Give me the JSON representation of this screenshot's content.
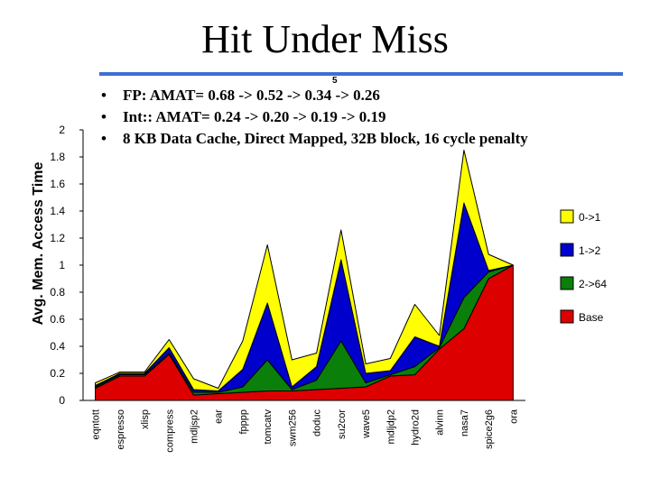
{
  "title": "Hit Under Miss",
  "slide_number": "5",
  "bullets": [
    "FP: AMAT= 0.68 -> 0.52 -> 0.34 -> 0.26",
    "Int:: AMAT= 0.24 -> 0.20 -> 0.19 -> 0.19",
    "8 KB Data Cache, Direct Mapped, 32B block, 16 cycle penalty"
  ],
  "colors": {
    "title_rule": "#3d6fd1"
  },
  "chart_data": {
    "type": "area",
    "stacked": true,
    "title": "",
    "xlabel": "",
    "ylabel": "Avg. Mem. Access Time",
    "ylim": [
      0,
      2
    ],
    "yticks": [
      "0",
      "0.2",
      "0.4",
      "0.6",
      "0.8",
      "1",
      "1.2",
      "1.4",
      "1.6",
      "1.8",
      "2"
    ],
    "legend_position": "right",
    "categories": [
      "eqntott",
      "espresso",
      "xlisp",
      "compress",
      "mdljsp2",
      "ear",
      "fpppp",
      "tomcatv",
      "swm256",
      "doduc",
      "su2cor",
      "wave5",
      "mdljdp2",
      "hydro2d",
      "alvinn",
      "nasa7",
      "spice2g6",
      "ora"
    ],
    "series": [
      {
        "name": "Base",
        "color": "#dd0000",
        "values": [
          0.09,
          0.18,
          0.18,
          0.34,
          0.04,
          0.05,
          0.06,
          0.07,
          0.07,
          0.08,
          0.09,
          0.1,
          0.18,
          0.19,
          0.38,
          0.53,
          0.9,
          1.0
        ]
      },
      {
        "name": "2->64",
        "color": "#0a800a",
        "values": [
          0.01,
          0.01,
          0.01,
          0.01,
          0.02,
          0.01,
          0.04,
          0.23,
          0.01,
          0.07,
          0.35,
          0.03,
          0.01,
          0.06,
          0.01,
          0.23,
          0.05,
          0.0
        ]
      },
      {
        "name": "1->2",
        "color": "#0000cc",
        "values": [
          0.01,
          0.01,
          0.01,
          0.04,
          0.02,
          0.01,
          0.13,
          0.42,
          0.02,
          0.1,
          0.6,
          0.07,
          0.03,
          0.22,
          0.01,
          0.7,
          0.01,
          0.0
        ]
      },
      {
        "name": "0->1",
        "color": "#ffff00",
        "values": [
          0.02,
          0.01,
          0.01,
          0.06,
          0.08,
          0.02,
          0.21,
          0.43,
          0.2,
          0.1,
          0.22,
          0.07,
          0.09,
          0.24,
          0.08,
          0.39,
          0.12,
          0.0
        ]
      }
    ],
    "legend_order": [
      "0->1",
      "1->2",
      "2->64",
      "Base"
    ]
  }
}
